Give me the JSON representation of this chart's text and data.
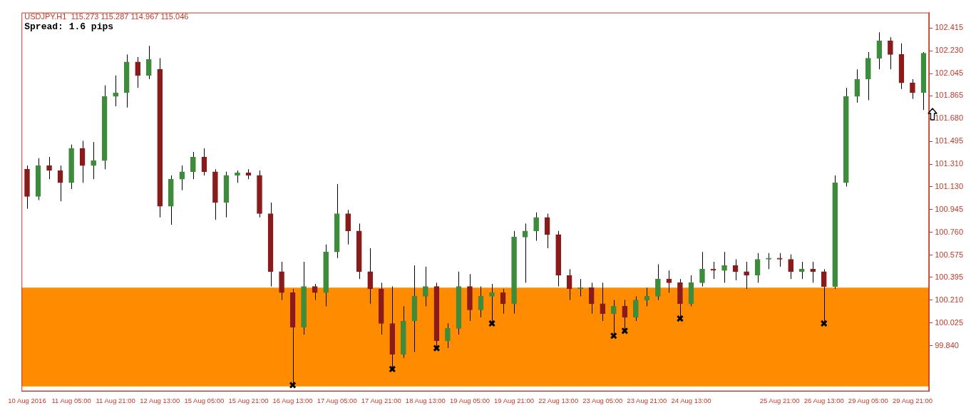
{
  "chart_data": {
    "type": "candlestick",
    "title": "USDJPY.H1  115.273 115.287 114.967 115.046",
    "annotations": [
      "Spread: 1.6 pips"
    ],
    "categories": [
      "10 Aug 2016",
      null,
      null,
      null,
      "11 Aug 05:00",
      null,
      null,
      null,
      "11 Aug 21:00",
      null,
      null,
      null,
      "12 Aug 13:00",
      null,
      null,
      null,
      "15 Aug 05:00",
      null,
      null,
      null,
      "15 Aug 21:00",
      null,
      null,
      null,
      "16 Aug 13:00",
      null,
      null,
      null,
      "17 Aug 05:00",
      null,
      null,
      null,
      "17 Aug 21:00",
      null,
      null,
      null,
      "18 Aug 13:00",
      null,
      null,
      null,
      "19 Aug 05:00",
      null,
      null,
      null,
      "19 Aug 21:00",
      null,
      null,
      null,
      "22 Aug 13:00",
      null,
      null,
      null,
      "23 Aug 05:00",
      null,
      null,
      null,
      "23 Aug 21:00",
      null,
      null,
      null,
      "24 Aug 13:00",
      null,
      null,
      null,
      null,
      null,
      null,
      null,
      "25 Aug 21:00",
      null,
      null,
      null,
      "26 Aug 13:00",
      null,
      null,
      null,
      "29 Aug 05:00",
      null,
      null,
      null,
      "29 Aug 21:00",
      null
    ],
    "ohlc": [
      [
        101.27,
        101.3,
        100.95,
        101.05
      ],
      [
        101.05,
        101.36,
        101.02,
        101.3
      ],
      [
        101.3,
        101.37,
        101.19,
        101.26
      ],
      [
        101.26,
        101.3,
        101.01,
        101.16
      ],
      [
        101.16,
        101.47,
        101.11,
        101.44
      ],
      [
        101.44,
        101.5,
        101.16,
        101.3
      ],
      [
        101.3,
        101.49,
        101.19,
        101.34
      ],
      [
        101.34,
        101.95,
        101.27,
        101.86
      ],
      [
        101.86,
        102.03,
        101.78,
        101.89
      ],
      [
        101.89,
        102.2,
        101.77,
        102.14
      ],
      [
        102.14,
        102.18,
        101.93,
        102.03
      ],
      [
        102.03,
        102.27,
        102.0,
        102.16
      ],
      [
        102.08,
        102.17,
        100.88,
        100.97
      ],
      [
        100.97,
        101.22,
        100.82,
        101.19
      ],
      [
        101.19,
        101.3,
        101.1,
        101.25
      ],
      [
        101.25,
        101.41,
        101.19,
        101.37
      ],
      [
        101.37,
        101.44,
        101.22,
        101.25
      ],
      [
        101.25,
        101.27,
        100.86,
        101.0
      ],
      [
        101.0,
        101.25,
        100.88,
        101.22
      ],
      [
        101.22,
        101.26,
        101.16,
        101.24
      ],
      [
        101.24,
        101.27,
        101.19,
        101.22
      ],
      [
        101.22,
        101.26,
        100.88,
        100.91
      ],
      [
        100.91,
        101.0,
        100.32,
        100.44
      ],
      [
        100.44,
        100.52,
        100.21,
        100.27
      ],
      [
        100.27,
        100.3,
        99.52,
        99.99
      ],
      [
        99.99,
        100.52,
        99.93,
        100.32
      ],
      [
        100.32,
        100.34,
        100.21,
        100.27
      ],
      [
        100.27,
        100.66,
        100.16,
        100.6
      ],
      [
        100.6,
        101.15,
        100.55,
        100.91
      ],
      [
        100.91,
        100.94,
        100.66,
        100.77
      ],
      [
        100.77,
        100.83,
        100.38,
        100.44
      ],
      [
        100.44,
        100.63,
        100.18,
        100.3
      ],
      [
        100.3,
        100.35,
        99.93,
        100.02
      ],
      [
        100.02,
        100.32,
        99.65,
        99.77
      ],
      [
        99.77,
        100.16,
        99.74,
        100.04
      ],
      [
        100.04,
        100.49,
        99.79,
        100.24
      ],
      [
        100.24,
        100.48,
        100.16,
        100.32
      ],
      [
        100.32,
        100.35,
        99.82,
        99.88
      ],
      [
        99.88,
        100.02,
        99.82,
        99.98
      ],
      [
        99.98,
        100.44,
        99.93,
        100.32
      ],
      [
        100.32,
        100.42,
        100.04,
        100.13
      ],
      [
        100.13,
        100.32,
        100.07,
        100.24
      ],
      [
        100.24,
        100.34,
        100.02,
        100.27
      ],
      [
        100.27,
        100.3,
        100.1,
        100.18
      ],
      [
        100.18,
        100.77,
        100.1,
        100.72
      ],
      [
        100.72,
        100.83,
        100.35,
        100.77
      ],
      [
        100.77,
        100.92,
        100.69,
        100.88
      ],
      [
        100.88,
        100.91,
        100.63,
        100.74
      ],
      [
        100.74,
        100.77,
        100.32,
        100.41
      ],
      [
        100.41,
        100.46,
        100.21,
        100.3
      ],
      [
        100.3,
        100.38,
        100.24,
        100.31
      ],
      [
        100.31,
        100.35,
        100.1,
        100.18
      ],
      [
        100.18,
        100.35,
        100.04,
        100.1
      ],
      [
        100.1,
        100.21,
        99.92,
        100.16
      ],
      [
        100.16,
        100.21,
        99.96,
        100.07
      ],
      [
        100.07,
        100.24,
        100.04,
        100.21
      ],
      [
        100.21,
        100.31,
        100.16,
        100.24
      ],
      [
        100.24,
        100.5,
        100.21,
        100.38
      ],
      [
        100.38,
        100.45,
        100.27,
        100.35
      ],
      [
        100.35,
        100.38,
        100.06,
        100.18
      ],
      [
        100.18,
        100.41,
        100.16,
        100.35
      ],
      [
        100.35,
        100.6,
        100.32,
        100.46
      ],
      [
        100.46,
        100.52,
        100.38,
        100.45
      ],
      [
        100.45,
        100.6,
        100.35,
        100.49
      ],
      [
        100.49,
        100.54,
        100.37,
        100.44
      ],
      [
        100.44,
        100.52,
        100.3,
        100.41
      ],
      [
        100.41,
        100.59,
        100.35,
        100.54
      ],
      [
        100.54,
        100.59,
        100.46,
        100.55
      ],
      [
        100.55,
        100.59,
        100.48,
        100.54
      ],
      [
        100.54,
        100.58,
        100.38,
        100.44
      ],
      [
        100.44,
        100.52,
        100.38,
        100.46
      ],
      [
        100.46,
        100.52,
        100.35,
        100.44
      ],
      [
        100.44,
        100.46,
        100.02,
        100.32
      ],
      [
        100.32,
        101.22,
        100.3,
        101.16
      ],
      [
        101.16,
        101.93,
        101.13,
        101.86
      ],
      [
        101.86,
        102.08,
        101.81,
        102.0
      ],
      [
        102.0,
        102.22,
        101.83,
        102.17
      ],
      [
        102.17,
        102.38,
        102.08,
        102.31
      ],
      [
        102.31,
        102.34,
        102.08,
        102.2
      ],
      [
        102.2,
        102.29,
        101.92,
        101.97
      ],
      [
        101.97,
        102.0,
        101.84,
        101.89
      ],
      [
        101.89,
        102.22,
        101.75,
        102.21
      ]
    ],
    "colors": [
      "#8b1a1a",
      "#3c8c3c",
      "#8b1a1a",
      "#8b1a1a",
      "#3c8c3c",
      "#8b1a1a",
      "#3c8c3c",
      "#3c8c3c",
      "#3c8c3c",
      "#3c8c3c",
      "#8b1a1a",
      "#3c8c3c",
      "#8b1a1a",
      "#3c8c3c",
      "#3c8c3c",
      "#3c8c3c",
      "#8b1a1a",
      "#8b1a1a",
      "#3c8c3c",
      "#3c8c3c",
      "#8b1a1a",
      "#8b1a1a",
      "#8b1a1a",
      "#8b1a1a",
      "#8b1a1a",
      "#3c8c3c",
      "#8b1a1a",
      "#3c8c3c",
      "#3c8c3c",
      "#8b1a1a",
      "#8b1a1a",
      "#8b1a1a",
      "#8b1a1a",
      "#8b1a1a",
      "#3c8c3c",
      "#3c8c3c",
      "#3c8c3c",
      "#8b1a1a",
      "#3c8c3c",
      "#3c8c3c",
      "#8b1a1a",
      "#3c8c3c",
      "#3c8c3c",
      "#8b1a1a",
      "#3c8c3c",
      "#3c8c3c",
      "#3c8c3c",
      "#8b1a1a",
      "#8b1a1a",
      "#8b1a1a",
      "#3c8c3c",
      "#8b1a1a",
      "#8b1a1a",
      "#3c8c3c",
      "#8b1a1a",
      "#3c8c3c",
      "#3c8c3c",
      "#3c8c3c",
      "#8b1a1a",
      "#8b1a1a",
      "#3c8c3c",
      "#3c8c3c",
      "#8b1a1a",
      "#3c8c3c",
      "#8b1a1a",
      "#8b1a1a",
      "#3c8c3c",
      "#3c8c3c",
      "#8b1a1a",
      "#8b1a1a",
      "#3c8c3c",
      "#8b1a1a",
      "#8b1a1a",
      "#3c8c3c",
      "#3c8c3c",
      "#3c8c3c",
      "#3c8c3c",
      "#3c8c3c",
      "#8b1a1a",
      "#8b1a1a",
      "#8b1a1a",
      "#3c8c3c"
    ],
    "series": [
      {
        "type": "scatter",
        "color": "#000000",
        "marker": "cross",
        "values": [
          null,
          null,
          null,
          null,
          null,
          null,
          null,
          null,
          null,
          null,
          null,
          null,
          null,
          null,
          null,
          null,
          null,
          null,
          null,
          null,
          null,
          null,
          null,
          null,
          99.52,
          null,
          null,
          null,
          null,
          null,
          null,
          null,
          null,
          99.65,
          null,
          null,
          null,
          99.82,
          null,
          null,
          null,
          null,
          100.02,
          null,
          null,
          null,
          null,
          null,
          null,
          null,
          null,
          null,
          null,
          99.92,
          99.96,
          null,
          null,
          null,
          null,
          100.06,
          null,
          null,
          null,
          null,
          null,
          null,
          null,
          null,
          null,
          null,
          null,
          null,
          100.02,
          null,
          null,
          null,
          null,
          null,
          null,
          null,
          null,
          null
        ]
      }
    ],
    "bands": [
      {
        "axis": "y",
        "from": 99.51,
        "to": 100.31,
        "color": "#ff8c00"
      }
    ],
    "ylim": [
      99.47,
      102.54
    ],
    "yticks": [
      102.415,
      {
        "value": 102.23,
        "label": "102.230"
      },
      102.045,
      101.865,
      {
        "value": 101.68,
        "label": "101.680"
      },
      101.495,
      {
        "value": 101.31,
        "label": "101.310"
      },
      {
        "value": 101.13,
        "label": "101.130"
      },
      100.945,
      {
        "value": 100.76,
        "label": "100.760"
      },
      100.575,
      100.395,
      {
        "value": 100.21,
        "label": "100.210"
      },
      100.025,
      {
        "value": 99.84,
        "label": "99.840"
      }
    ]
  }
}
